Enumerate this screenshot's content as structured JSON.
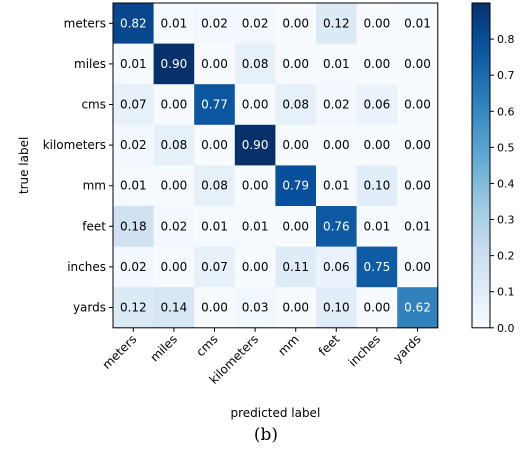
{
  "caption": "(b)",
  "chart_data": {
    "type": "heatmap",
    "title": "",
    "xlabel": "predicted label",
    "ylabel": "true label",
    "row_labels": [
      "meters",
      "miles",
      "cms",
      "kilometers",
      "mm",
      "feet",
      "inches",
      "yards"
    ],
    "col_labels": [
      "meters",
      "miles",
      "cms",
      "kilometers",
      "mm",
      "feet",
      "inches",
      "yards"
    ],
    "values": [
      [
        0.82,
        0.01,
        0.02,
        0.02,
        0.0,
        0.12,
        0.0,
        0.01
      ],
      [
        0.01,
        0.9,
        0.0,
        0.08,
        0.0,
        0.01,
        0.0,
        0.0
      ],
      [
        0.07,
        0.0,
        0.77,
        0.0,
        0.08,
        0.02,
        0.06,
        0.0
      ],
      [
        0.02,
        0.08,
        0.0,
        0.9,
        0.0,
        0.0,
        0.0,
        0.0
      ],
      [
        0.01,
        0.0,
        0.08,
        0.0,
        0.79,
        0.01,
        0.1,
        0.0
      ],
      [
        0.18,
        0.02,
        0.01,
        0.01,
        0.0,
        0.76,
        0.01,
        0.01
      ],
      [
        0.02,
        0.0,
        0.07,
        0.0,
        0.11,
        0.06,
        0.75,
        0.0
      ],
      [
        0.12,
        0.14,
        0.0,
        0.03,
        0.0,
        0.1,
        0.0,
        0.62
      ]
    ],
    "colormap": "Blues",
    "color_range": [
      0.0,
      0.9
    ],
    "colorbar": {
      "position": "right",
      "ticks": [
        0.0,
        0.1,
        0.2,
        0.3,
        0.4,
        0.5,
        0.6,
        0.7,
        0.8
      ]
    }
  }
}
